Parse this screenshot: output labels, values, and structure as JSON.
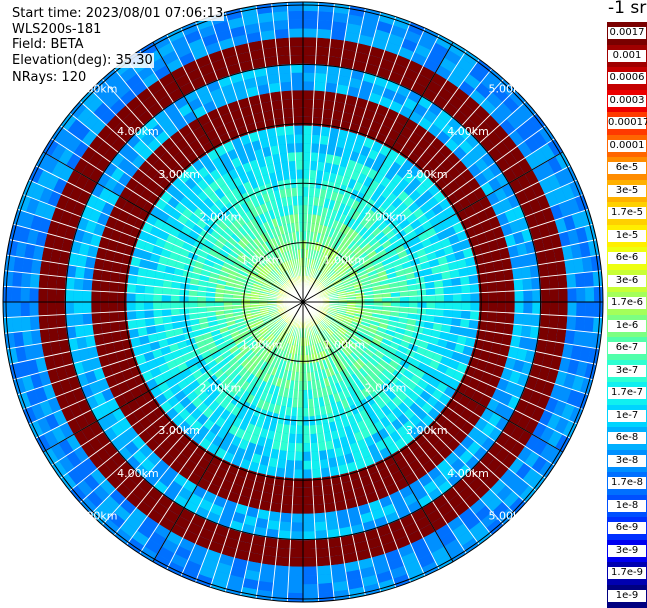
{
  "info": {
    "start_time": "Start time: 2023/08/01 07:06:13",
    "instrument": "WLS200s-181",
    "field": "Field: BETA",
    "elevation": "Elevation(deg): 35.30",
    "nrays": "NRays: 120"
  },
  "unit_label": "-1 sr",
  "chart_data": {
    "type": "heatmap",
    "projection": "polar-ppi",
    "field": "BETA",
    "elevation_deg": 35.3,
    "n_rays": 120,
    "range_rings_km": [
      1,
      2,
      3,
      4,
      5
    ],
    "range_labels": [
      "1.00km",
      "2.00km",
      "3.00km",
      "4.00km",
      "5.00km"
    ],
    "spoke_angles_deg": [
      0,
      30,
      60,
      90,
      120,
      150,
      180,
      210,
      240,
      270,
      300,
      330
    ],
    "color_scale": "log",
    "colorbar": [
      {
        "label": "0.0017",
        "color": "#7a0000"
      },
      {
        "label": "0.001",
        "color": "#a00000"
      },
      {
        "label": "0.0006",
        "color": "#c40000"
      },
      {
        "label": "0.0003",
        "color": "#ec0000"
      },
      {
        "label": "0.00017",
        "color": "#ff3a00"
      },
      {
        "label": "0.0001",
        "color": "#ff6600"
      },
      {
        "label": "6e-5",
        "color": "#ff8c00"
      },
      {
        "label": "3e-5",
        "color": "#ffb000"
      },
      {
        "label": "1.7e-5",
        "color": "#ffd000"
      },
      {
        "label": "1e-5",
        "color": "#ffee00"
      },
      {
        "label": "6e-6",
        "color": "#eeff10"
      },
      {
        "label": "3e-6",
        "color": "#c8ff36"
      },
      {
        "label": "1.7e-6",
        "color": "#a4ff5a"
      },
      {
        "label": "1e-6",
        "color": "#7cff82"
      },
      {
        "label": "6e-7",
        "color": "#52ffaa"
      },
      {
        "label": "3e-7",
        "color": "#2effd2"
      },
      {
        "label": "1.7e-7",
        "color": "#10f0f0"
      },
      {
        "label": "1e-7",
        "color": "#00d4ff"
      },
      {
        "label": "6e-8",
        "color": "#00b0ff"
      },
      {
        "label": "3e-8",
        "color": "#0090ff"
      },
      {
        "label": "1.7e-8",
        "color": "#0070ff"
      },
      {
        "label": "1e-8",
        "color": "#0050ff"
      },
      {
        "label": "6e-9",
        "color": "#0030ff"
      },
      {
        "label": "3e-9",
        "color": "#0000f0"
      },
      {
        "label": "1.7e-9",
        "color": "#0000b0"
      },
      {
        "label": "1e-9",
        "color": "#000080"
      }
    ],
    "ring_colors": [
      {
        "range_km": 0.0,
        "color": "#c8ff36"
      },
      {
        "range_km": 0.5,
        "color": "#7cff82"
      },
      {
        "range_km": 1.0,
        "color": "#52ffaa"
      },
      {
        "range_km": 1.5,
        "color": "#2effd2"
      },
      {
        "range_km": 2.0,
        "color": "#10f0f0"
      },
      {
        "range_km": 2.5,
        "color": "#00d4ff"
      },
      {
        "range_km": 3.0,
        "color": "#00c8ff"
      },
      {
        "range_km": 3.5,
        "color": "#00b0ff"
      },
      {
        "range_km": 4.0,
        "color": "#009eff"
      },
      {
        "range_km": 4.5,
        "color": "#0090ff"
      },
      {
        "range_km": 5.0,
        "color": "#0080ff"
      }
    ]
  }
}
